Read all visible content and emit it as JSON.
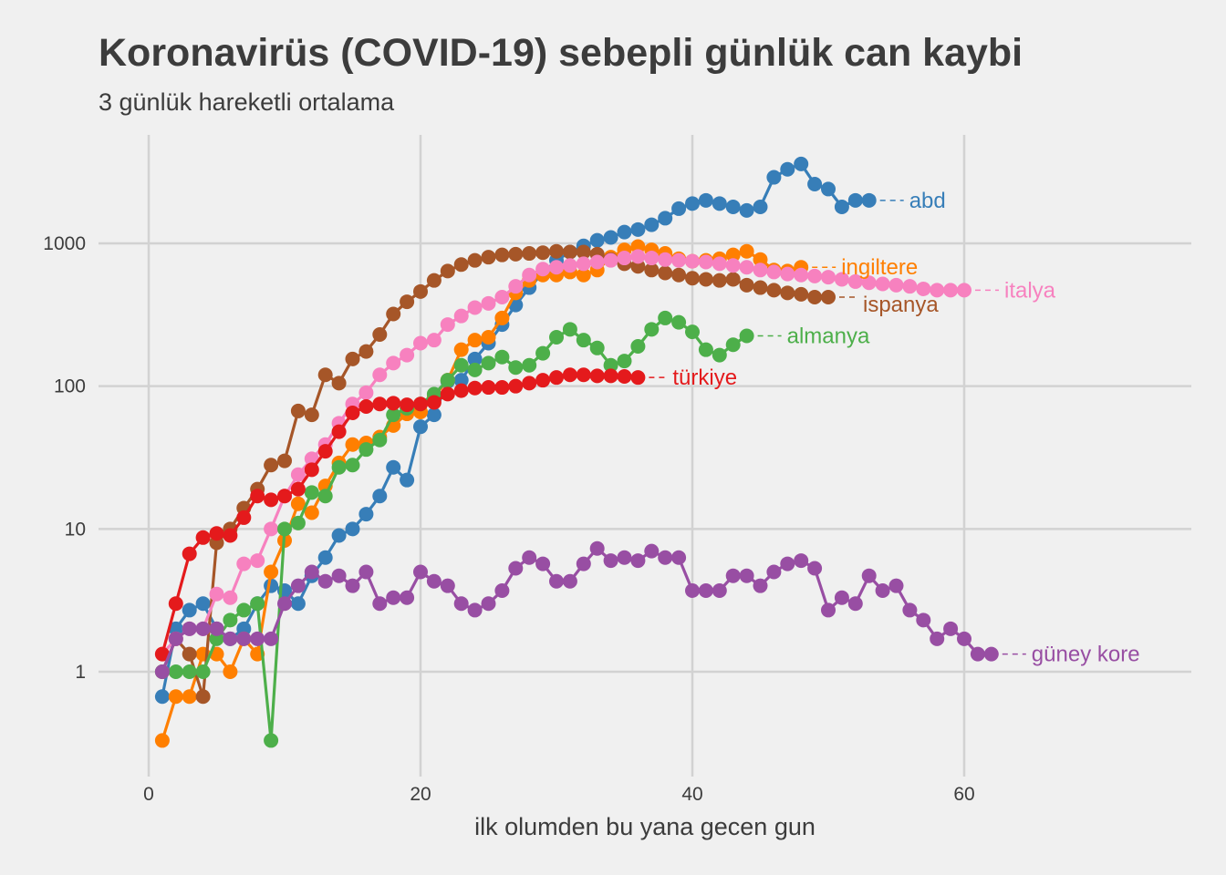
{
  "chart_data": {
    "type": "line",
    "title": "Koronavirüs (COVID-19) sebepli günlük can kaybi",
    "subtitle": "3 günlük hareketli ortalama",
    "xlabel": "ilk olumden bu yana gecen gun",
    "ylabel": "",
    "x_scale": "linear",
    "y_scale": "log",
    "xlim": [
      -4,
      76
    ],
    "ylim": [
      0.25,
      8000
    ],
    "x_ticks": [
      "0",
      "20",
      "40",
      "60"
    ],
    "x_tick_values": [
      0,
      20,
      40,
      60
    ],
    "y_ticks": [
      "1",
      "10",
      "100",
      "1000"
    ],
    "y_tick_values": [
      1,
      10,
      100,
      1000
    ],
    "grid": true,
    "legend": "direct labels at line ends",
    "series": [
      {
        "name": "abd",
        "color": "#377eb8",
        "x": [
          1,
          2,
          3,
          4,
          5,
          6,
          7,
          8,
          9,
          10,
          11,
          12,
          13,
          14,
          15,
          16,
          17,
          18,
          19,
          20,
          21,
          22,
          23,
          24,
          25,
          26,
          27,
          28,
          29,
          30,
          31,
          32,
          33,
          34,
          35,
          36,
          37,
          38,
          39,
          40,
          41,
          42,
          43,
          44,
          45,
          46,
          47,
          48,
          49,
          50,
          51,
          52,
          53
        ],
        "y": [
          0.67,
          2,
          2.7,
          3,
          2,
          1.7,
          2,
          3,
          4,
          3.7,
          3,
          4.7,
          6.3,
          9,
          10,
          12.7,
          17,
          27,
          22,
          52,
          63,
          108,
          110,
          155,
          200,
          270,
          370,
          490,
          620,
          760,
          870,
          960,
          1050,
          1100,
          1200,
          1250,
          1350,
          1500,
          1750,
          1900,
          2000,
          1900,
          1800,
          1700,
          1800,
          2900,
          3300,
          3600,
          2600,
          2400,
          1800,
          2000,
          2000
        ]
      },
      {
        "name": "ingiltere",
        "color": "#ff7f00",
        "x": [
          1,
          2,
          3,
          4,
          5,
          6,
          7,
          8,
          9,
          10,
          11,
          12,
          13,
          14,
          15,
          16,
          17,
          18,
          19,
          20,
          21,
          22,
          23,
          24,
          25,
          26,
          27,
          28,
          29,
          30,
          31,
          32,
          33,
          34,
          35,
          36,
          37,
          38,
          39,
          40,
          41,
          42,
          43,
          44,
          45,
          46,
          47,
          48
        ],
        "y": [
          0.33,
          0.67,
          0.67,
          1.33,
          1.33,
          1,
          1.7,
          1.33,
          5,
          8.3,
          15,
          13,
          20,
          29,
          39,
          40,
          44,
          53,
          64,
          66,
          85,
          110,
          180,
          210,
          220,
          300,
          450,
          550,
          600,
          600,
          630,
          600,
          650,
          800,
          900,
          950,
          900,
          850,
          780,
          750,
          760,
          780,
          830,
          880,
          770,
          650,
          640,
          680
        ]
      },
      {
        "name": "ispanya",
        "color": "#a65628",
        "x": [
          1,
          2,
          3,
          4,
          5,
          6,
          7,
          8,
          9,
          10,
          11,
          12,
          13,
          14,
          15,
          16,
          17,
          18,
          19,
          20,
          21,
          22,
          23,
          24,
          25,
          26,
          27,
          28,
          29,
          30,
          31,
          32,
          33,
          34,
          35,
          36,
          37,
          38,
          39,
          40,
          41,
          42,
          43,
          44,
          45,
          46,
          47,
          48,
          49,
          50
        ],
        "y": [
          1,
          1.7,
          1.33,
          0.67,
          8,
          10,
          14,
          19,
          28,
          30,
          67,
          63,
          120,
          105,
          155,
          175,
          230,
          320,
          390,
          460,
          550,
          640,
          710,
          760,
          800,
          830,
          840,
          850,
          860,
          880,
          870,
          870,
          840,
          770,
          720,
          690,
          650,
          620,
          600,
          570,
          560,
          550,
          560,
          510,
          490,
          470,
          450,
          440,
          420,
          420
        ]
      },
      {
        "name": "italya",
        "color": "#f781bf",
        "x": [
          1,
          2,
          3,
          4,
          5,
          6,
          7,
          8,
          9,
          10,
          11,
          12,
          13,
          14,
          15,
          16,
          17,
          18,
          19,
          20,
          21,
          22,
          23,
          24,
          25,
          26,
          27,
          28,
          29,
          30,
          31,
          32,
          33,
          34,
          35,
          36,
          37,
          38,
          39,
          40,
          41,
          42,
          43,
          44,
          45,
          46,
          47,
          48,
          49,
          50,
          51,
          52,
          53,
          54,
          55,
          56,
          57,
          58,
          59,
          60
        ],
        "y": [
          1.33,
          1.7,
          2,
          2,
          3.5,
          3.3,
          5.7,
          6,
          10,
          17,
          24,
          31,
          39,
          55,
          75,
          90,
          120,
          145,
          165,
          200,
          210,
          270,
          310,
          355,
          380,
          420,
          500,
          600,
          660,
          680,
          700,
          720,
          740,
          760,
          790,
          810,
          790,
          770,
          760,
          750,
          740,
          720,
          700,
          680,
          650,
          630,
          610,
          600,
          590,
          580,
          560,
          540,
          530,
          520,
          510,
          500,
          480,
          470,
          470,
          470
        ]
      },
      {
        "name": "almanya",
        "color": "#4daf4a",
        "x": [
          1,
          2,
          3,
          4,
          5,
          6,
          7,
          8,
          9,
          10,
          11,
          12,
          13,
          14,
          15,
          16,
          17,
          18,
          19,
          20,
          21,
          22,
          23,
          24,
          25,
          26,
          27,
          28,
          29,
          30,
          31,
          32,
          33,
          34,
          35,
          36,
          37,
          38,
          39,
          40,
          41,
          42,
          43,
          44
        ],
        "y": [
          1,
          1,
          1,
          1,
          1.7,
          2.3,
          2.7,
          3,
          0.33,
          10,
          11,
          18,
          17,
          27,
          28,
          36,
          42,
          63,
          70,
          75,
          88,
          110,
          140,
          130,
          145,
          160,
          135,
          140,
          170,
          220,
          250,
          210,
          185,
          140,
          150,
          190,
          250,
          300,
          280,
          240,
          180,
          165,
          195,
          225
        ]
      },
      {
        "name": "türkiye",
        "color": "#e41a1c",
        "x": [
          1,
          2,
          3,
          4,
          5,
          6,
          7,
          8,
          9,
          10,
          11,
          12,
          13,
          14,
          15,
          16,
          17,
          18,
          19,
          20,
          21,
          22,
          23,
          24,
          25,
          26,
          27,
          28,
          29,
          30,
          31,
          32,
          33,
          34,
          35,
          36
        ],
        "y": [
          1.33,
          3,
          6.7,
          8.7,
          9.3,
          9,
          12,
          17,
          16,
          17,
          19,
          26,
          35,
          48,
          65,
          72,
          75,
          76,
          74,
          75,
          77,
          88,
          93,
          97,
          98,
          98,
          100,
          105,
          110,
          115,
          120,
          120,
          118,
          118,
          117,
          115
        ]
      },
      {
        "name": "güney kore",
        "color": "#984ea3",
        "x": [
          1,
          2,
          3,
          4,
          5,
          6,
          7,
          8,
          9,
          10,
          11,
          12,
          13,
          14,
          15,
          16,
          17,
          18,
          19,
          20,
          21,
          22,
          23,
          24,
          25,
          26,
          27,
          28,
          29,
          30,
          31,
          32,
          33,
          34,
          35,
          36,
          37,
          38,
          39,
          40,
          41,
          42,
          43,
          44,
          45,
          46,
          47,
          48,
          49,
          50,
          51,
          52,
          53,
          54,
          55,
          56,
          57,
          58,
          59,
          60,
          61,
          62
        ],
        "y": [
          1,
          1.7,
          2,
          2,
          2,
          1.7,
          1.7,
          1.7,
          1.7,
          3,
          4,
          5,
          4.3,
          4.7,
          4,
          5,
          3,
          3.3,
          3.3,
          5,
          4.3,
          4,
          3,
          2.7,
          3,
          3.7,
          5.3,
          6.3,
          5.7,
          4.3,
          4.3,
          5.7,
          7.3,
          6,
          6.3,
          6,
          7,
          6.3,
          6.3,
          3.7,
          3.7,
          3.7,
          4.7,
          4.7,
          4,
          5,
          5.7,
          6,
          5.3,
          2.7,
          3.3,
          3,
          4.7,
          3.7,
          4,
          2.7,
          2.3,
          1.7,
          2,
          1.7,
          1.33,
          1.33
        ]
      }
    ],
    "labels": [
      {
        "text": "abd",
        "color": "#377eb8"
      },
      {
        "text": "ingiltere",
        "color": "#ff7f00"
      },
      {
        "text": "ispanya",
        "color": "#a65628"
      },
      {
        "text": "italya",
        "color": "#f781bf"
      },
      {
        "text": "almanya",
        "color": "#4daf4a"
      },
      {
        "text": "türkiye",
        "color": "#e41a1c"
      },
      {
        "text": "güney kore",
        "color": "#984ea3"
      }
    ]
  }
}
